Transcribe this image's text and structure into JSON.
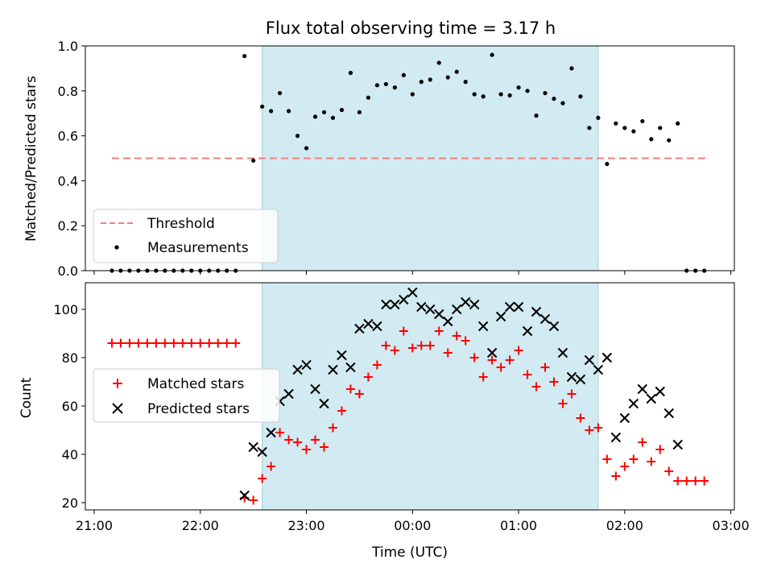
{
  "chart_data": [
    {
      "type": "scatter",
      "title": "Flux total observing time = 3.17 h",
      "xlabel": "",
      "ylabel": "Matched/Predicted stars",
      "ylim": [
        0,
        1.0
      ],
      "yticks": [
        "0.0",
        "0.2",
        "0.4",
        "0.6",
        "0.8",
        "1.0"
      ],
      "threshold": {
        "name": "Threshold",
        "value": 0.5,
        "x_range": [
          "21:10",
          "02:46"
        ],
        "color": "#f08080"
      },
      "shaded_window": {
        "start": "22:35",
        "end": "01:45",
        "color": "#add8e6"
      },
      "legend": {
        "placement": "lower-left",
        "entries": [
          "Threshold",
          "Measurements"
        ]
      },
      "series": [
        {
          "name": "Measurements",
          "marker": "dot",
          "color": "#000000",
          "x": [
            "21:10",
            "21:15",
            "21:20",
            "21:25",
            "21:30",
            "21:35",
            "21:40",
            "21:45",
            "21:50",
            "21:55",
            "22:00",
            "22:05",
            "22:10",
            "22:15",
            "22:20",
            "22:25",
            "22:30",
            "22:35",
            "22:40",
            "22:45",
            "22:50",
            "22:55",
            "23:00",
            "23:05",
            "23:10",
            "23:15",
            "23:20",
            "23:25",
            "23:30",
            "23:35",
            "23:40",
            "23:45",
            "23:50",
            "23:55",
            "00:00",
            "00:05",
            "00:10",
            "00:15",
            "00:20",
            "00:25",
            "00:30",
            "00:35",
            "00:40",
            "00:45",
            "00:50",
            "00:55",
            "01:00",
            "01:05",
            "01:10",
            "01:15",
            "01:20",
            "01:25",
            "01:30",
            "01:35",
            "01:40",
            "01:45",
            "01:50",
            "01:55",
            "02:00",
            "02:05",
            "02:10",
            "02:15",
            "02:20",
            "02:25",
            "02:30",
            "02:35",
            "02:40",
            "02:45"
          ],
          "y": [
            0,
            0,
            0,
            0,
            0,
            0,
            0,
            0,
            0,
            0,
            0,
            0,
            0,
            0,
            0,
            0.955,
            0.49,
            0.73,
            0.71,
            0.79,
            0.71,
            0.6,
            0.545,
            0.685,
            0.705,
            0.68,
            0.715,
            0.88,
            0.705,
            0.77,
            0.825,
            0.83,
            0.815,
            0.87,
            0.785,
            0.84,
            0.85,
            0.925,
            0.86,
            0.885,
            0.84,
            0.785,
            0.775,
            0.96,
            0.785,
            0.78,
            0.815,
            0.8,
            0.69,
            0.79,
            0.765,
            0.745,
            0.9,
            0.775,
            0.635,
            0.68,
            0.475,
            0.655,
            0.635,
            0.62,
            0.665,
            0.585,
            0.635,
            0.58,
            0.655,
            0,
            0,
            0
          ]
        }
      ]
    },
    {
      "type": "scatter",
      "title": "",
      "xlabel": "Time (UTC)",
      "ylabel": "Count",
      "ylim": [
        17,
        111
      ],
      "yticks": [
        "20",
        "40",
        "60",
        "80",
        "100"
      ],
      "xticks": [
        "21:00",
        "22:00",
        "23:00",
        "00:00",
        "01:00",
        "02:00",
        "03:00"
      ],
      "xlim": [
        "20:55",
        "03:02"
      ],
      "shaded_window": {
        "start": "22:35",
        "end": "01:45",
        "color": "#add8e6"
      },
      "legend": {
        "placement": "center-left",
        "entries": [
          "Matched stars",
          "Predicted stars"
        ]
      },
      "series": [
        {
          "name": "Matched stars",
          "marker": "plus",
          "color": "#ff0000",
          "x": [
            "21:10",
            "21:15",
            "21:20",
            "21:25",
            "21:30",
            "21:35",
            "21:40",
            "21:45",
            "21:50",
            "21:55",
            "22:00",
            "22:05",
            "22:10",
            "22:15",
            "22:20",
            "22:25",
            "22:30",
            "22:35",
            "22:40",
            "22:45",
            "22:50",
            "22:55",
            "23:00",
            "23:05",
            "23:10",
            "23:15",
            "23:20",
            "23:25",
            "23:30",
            "23:35",
            "23:40",
            "23:45",
            "23:50",
            "23:55",
            "00:00",
            "00:05",
            "00:10",
            "00:15",
            "00:20",
            "00:25",
            "00:30",
            "00:35",
            "00:40",
            "00:45",
            "00:50",
            "00:55",
            "01:00",
            "01:05",
            "01:10",
            "01:15",
            "01:20",
            "01:25",
            "01:30",
            "01:35",
            "01:40",
            "01:45",
            "01:50",
            "01:55",
            "02:00",
            "02:05",
            "02:10",
            "02:15",
            "02:20",
            "02:25",
            "02:30",
            "02:35",
            "02:40",
            "02:45"
          ],
          "y": [
            86,
            86,
            86,
            86,
            86,
            86,
            86,
            86,
            86,
            86,
            86,
            86,
            86,
            86,
            86,
            22,
            21,
            30,
            35,
            49,
            46,
            45,
            42,
            46,
            43,
            51,
            58,
            67,
            65,
            72,
            77,
            85,
            83,
            91,
            84,
            85,
            85,
            91,
            82,
            89,
            87,
            80,
            72,
            79,
            76,
            79,
            83,
            73,
            68,
            76,
            70,
            61,
            65,
            55,
            50,
            51,
            38,
            31,
            35,
            38,
            45,
            37,
            42,
            33,
            29,
            29,
            29,
            29
          ]
        },
        {
          "name": "Predicted stars",
          "marker": "x",
          "color": "#000000",
          "x": [
            "22:25",
            "22:30",
            "22:35",
            "22:40",
            "22:45",
            "22:50",
            "22:55",
            "23:00",
            "23:05",
            "23:10",
            "23:15",
            "23:20",
            "23:25",
            "23:30",
            "23:35",
            "23:40",
            "23:45",
            "23:50",
            "23:55",
            "00:00",
            "00:05",
            "00:10",
            "00:15",
            "00:20",
            "00:25",
            "00:30",
            "00:35",
            "00:40",
            "00:45",
            "00:50",
            "00:55",
            "01:00",
            "01:05",
            "01:10",
            "01:15",
            "01:20",
            "01:25",
            "01:30",
            "01:35",
            "01:40",
            "01:45",
            "01:50",
            "01:55",
            "02:00",
            "02:05",
            "02:10",
            "02:15",
            "02:20",
            "02:25",
            "02:30"
          ],
          "y": [
            23,
            43,
            41,
            49,
            62,
            65,
            75,
            77,
            67,
            61,
            75,
            81,
            76,
            92,
            94,
            93,
            102,
            102,
            104,
            107,
            101,
            100,
            98,
            95,
            100,
            103,
            102,
            93,
            82,
            97,
            101,
            101,
            91,
            99,
            96,
            93,
            82,
            72,
            71,
            79,
            75,
            80,
            47,
            55,
            61,
            67,
            63,
            66,
            57,
            44
          ]
        }
      ]
    }
  ]
}
